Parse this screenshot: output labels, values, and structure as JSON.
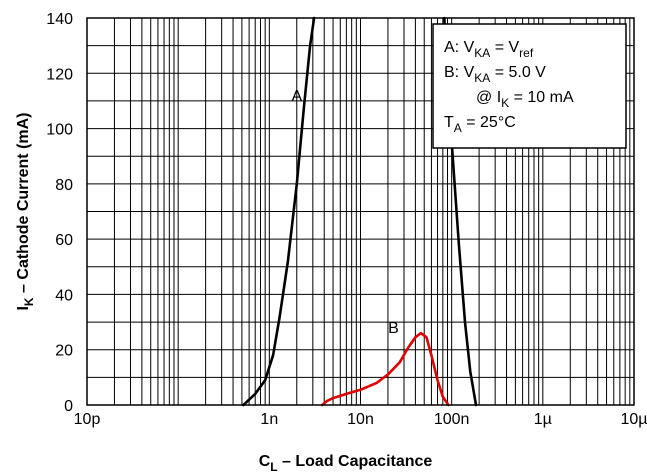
{
  "chart_data": {
    "type": "line",
    "xlabel": {
      "main": "C",
      "sub": "L",
      "rest": " – Load Capacitance"
    },
    "ylabel": {
      "main": "I",
      "sub": "K",
      "rest": " – Cathode Current (mA)"
    },
    "x_scale": "log",
    "xlim": [
      1e-11,
      1e-05
    ],
    "ylim": [
      0,
      140
    ],
    "x_tick_values": [
      1e-11,
      1e-09,
      1e-08,
      1e-07,
      1e-06,
      1e-05
    ],
    "x_tick_labels": [
      "10p",
      "1n",
      "10n",
      "100n",
      "1µ",
      "10µ"
    ],
    "y_ticks": [
      0,
      20,
      40,
      60,
      80,
      100,
      120,
      140
    ],
    "grid": true,
    "legend": {
      "placement": "top-right",
      "lines": [
        {
          "text": "A: V",
          "sub": "KA",
          "text2": " = V",
          "sub2": "ref"
        },
        {
          "text": "B: V",
          "sub": "KA",
          "text2": " = 5.0 V"
        },
        {
          "text": "@ I",
          "sub": "K",
          "text2": " = 10 mA",
          "indent": true
        },
        {
          "text": "T",
          "sub": "A",
          "text2": " = 25°C"
        }
      ]
    },
    "series": [
      {
        "label": "A",
        "color": "#000000",
        "label_pos": {
          "x": 2e-09,
          "y": 110
        },
        "segments": [
          {
            "x": [
              5.2e-10,
              7e-10,
              9e-10,
              1.1e-09,
              1.3e-09,
              1.6e-09,
              2e-09,
              2.4e-09,
              2.8e-09,
              3.1e-09
            ],
            "y": [
              0,
              4,
              9,
              18,
              32,
              52,
              80,
              108,
              130,
              140
            ]
          },
          {
            "x": [
              8.3e-08,
              1e-07,
              1.2e-07,
              1.4e-07,
              1.6e-07,
              1.85e-07
            ],
            "y": [
              140,
              95,
              58,
              30,
              12,
              0
            ]
          }
        ]
      },
      {
        "label": "B",
        "color": "#e00000",
        "label_pos": {
          "x": 2.3e-08,
          "y": 26
        },
        "segments": [
          {
            "x": [
              3.8e-09,
              4.3e-09,
              5e-09,
              7e-09,
              1e-08,
              1.5e-08,
              2e-08,
              2.7e-08,
              3.3e-08,
              4e-08,
              4.6e-08,
              5.3e-08,
              6e-08,
              7e-08,
              8e-08,
              9.2e-08
            ],
            "y": [
              0,
              1.5,
              2.5,
              4,
              5.5,
              8,
              11,
              15.5,
              20.5,
              24.5,
              26,
              24.5,
              18,
              9,
              3,
              0
            ]
          }
        ]
      }
    ]
  }
}
